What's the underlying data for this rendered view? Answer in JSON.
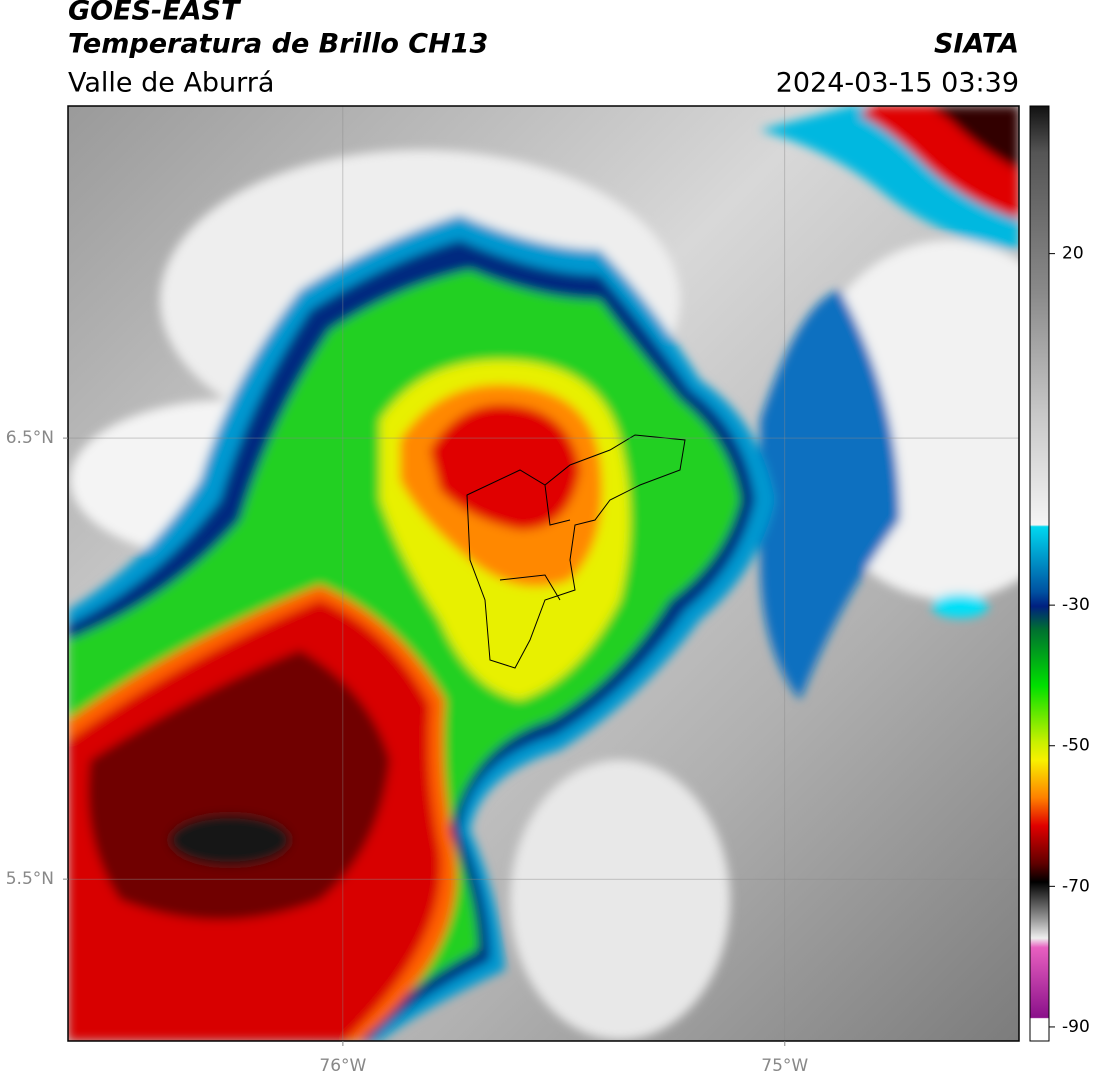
{
  "header": {
    "satellite": "GOES-EAST",
    "product": "Temperatura de Brillo CH13",
    "region": "Valle de Aburrá",
    "agency": "SIATA",
    "datetime": "2024-03-15 03:39"
  },
  "map": {
    "xlim": [
      -76.622,
      -74.47
    ],
    "ylim": [
      5.133,
      7.253
    ],
    "xticks": [
      {
        "value": -76,
        "label": "76°W"
      },
      {
        "value": -75,
        "label": "75°W"
      }
    ],
    "yticks": [
      {
        "value": 6.5,
        "label": "6.5°N"
      },
      {
        "value": 5.5,
        "label": "5.5°N"
      }
    ],
    "grid": true
  },
  "colorbar": {
    "clim": [
      -92,
      41
    ],
    "ticks": [
      20,
      -30,
      -50,
      -70,
      -90
    ]
  }
}
